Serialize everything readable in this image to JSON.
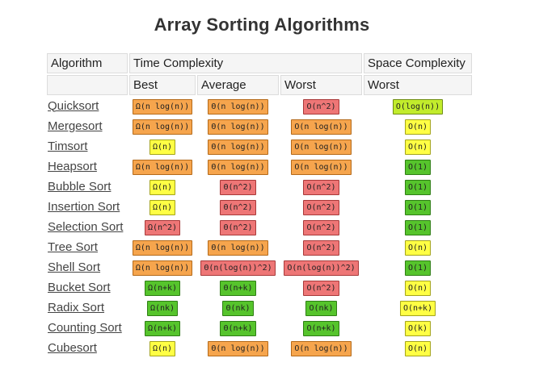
{
  "page": {
    "title": "Array Sorting Algorithms"
  },
  "colors": {
    "orange": "#f6a54d",
    "red": "#ee7676",
    "yellow": "#ffff44",
    "green": "#56c42c",
    "lime": "#c2ec2c"
  },
  "table": {
    "header_row1": {
      "algorithm": "Algorithm",
      "time_complexity": "Time Complexity",
      "space_complexity": "Space Complexity"
    },
    "header_row2": {
      "best": "Best",
      "average": "Average",
      "worst": "Worst",
      "space_worst": "Worst"
    },
    "rows": [
      {
        "name": "Quicksort",
        "best": {
          "text": "Ω(n log(n))",
          "color": "orange"
        },
        "average": {
          "text": "Θ(n log(n))",
          "color": "orange"
        },
        "worst": {
          "text": "O(n^2)",
          "color": "red"
        },
        "space": {
          "text": "O(log(n))",
          "color": "lime"
        }
      },
      {
        "name": "Mergesort",
        "best": {
          "text": "Ω(n log(n))",
          "color": "orange"
        },
        "average": {
          "text": "Θ(n log(n))",
          "color": "orange"
        },
        "worst": {
          "text": "O(n log(n))",
          "color": "orange"
        },
        "space": {
          "text": "O(n)",
          "color": "yellow"
        }
      },
      {
        "name": "Timsort",
        "best": {
          "text": "Ω(n)",
          "color": "yellow"
        },
        "average": {
          "text": "Θ(n log(n))",
          "color": "orange"
        },
        "worst": {
          "text": "O(n log(n))",
          "color": "orange"
        },
        "space": {
          "text": "O(n)",
          "color": "yellow"
        }
      },
      {
        "name": "Heapsort",
        "best": {
          "text": "Ω(n log(n))",
          "color": "orange"
        },
        "average": {
          "text": "Θ(n log(n))",
          "color": "orange"
        },
        "worst": {
          "text": "O(n log(n))",
          "color": "orange"
        },
        "space": {
          "text": "O(1)",
          "color": "green"
        }
      },
      {
        "name": "Bubble Sort",
        "best": {
          "text": "Ω(n)",
          "color": "yellow"
        },
        "average": {
          "text": "Θ(n^2)",
          "color": "red"
        },
        "worst": {
          "text": "O(n^2)",
          "color": "red"
        },
        "space": {
          "text": "O(1)",
          "color": "green"
        }
      },
      {
        "name": "Insertion Sort",
        "best": {
          "text": "Ω(n)",
          "color": "yellow"
        },
        "average": {
          "text": "Θ(n^2)",
          "color": "red"
        },
        "worst": {
          "text": "O(n^2)",
          "color": "red"
        },
        "space": {
          "text": "O(1)",
          "color": "green"
        }
      },
      {
        "name": "Selection Sort",
        "best": {
          "text": "Ω(n^2)",
          "color": "red"
        },
        "average": {
          "text": "Θ(n^2)",
          "color": "red"
        },
        "worst": {
          "text": "O(n^2)",
          "color": "red"
        },
        "space": {
          "text": "O(1)",
          "color": "green"
        }
      },
      {
        "name": "Tree Sort",
        "best": {
          "text": "Ω(n log(n))",
          "color": "orange"
        },
        "average": {
          "text": "Θ(n log(n))",
          "color": "orange"
        },
        "worst": {
          "text": "O(n^2)",
          "color": "red"
        },
        "space": {
          "text": "O(n)",
          "color": "yellow"
        }
      },
      {
        "name": "Shell Sort",
        "best": {
          "text": "Ω(n log(n))",
          "color": "orange"
        },
        "average": {
          "text": "Θ(n(log(n))^2)",
          "color": "red"
        },
        "worst": {
          "text": "O(n(log(n))^2)",
          "color": "red"
        },
        "space": {
          "text": "O(1)",
          "color": "green"
        }
      },
      {
        "name": "Bucket Sort",
        "best": {
          "text": "Ω(n+k)",
          "color": "green"
        },
        "average": {
          "text": "Θ(n+k)",
          "color": "green"
        },
        "worst": {
          "text": "O(n^2)",
          "color": "red"
        },
        "space": {
          "text": "O(n)",
          "color": "yellow"
        }
      },
      {
        "name": "Radix Sort",
        "best": {
          "text": "Ω(nk)",
          "color": "green"
        },
        "average": {
          "text": "Θ(nk)",
          "color": "green"
        },
        "worst": {
          "text": "O(nk)",
          "color": "green"
        },
        "space": {
          "text": "O(n+k)",
          "color": "yellow"
        }
      },
      {
        "name": "Counting Sort",
        "best": {
          "text": "Ω(n+k)",
          "color": "green"
        },
        "average": {
          "text": "Θ(n+k)",
          "color": "green"
        },
        "worst": {
          "text": "O(n+k)",
          "color": "green"
        },
        "space": {
          "text": "O(k)",
          "color": "yellow"
        }
      },
      {
        "name": "Cubesort",
        "best": {
          "text": "Ω(n)",
          "color": "yellow"
        },
        "average": {
          "text": "Θ(n log(n))",
          "color": "orange"
        },
        "worst": {
          "text": "O(n log(n))",
          "color": "orange"
        },
        "space": {
          "text": "O(n)",
          "color": "yellow"
        }
      }
    ]
  }
}
